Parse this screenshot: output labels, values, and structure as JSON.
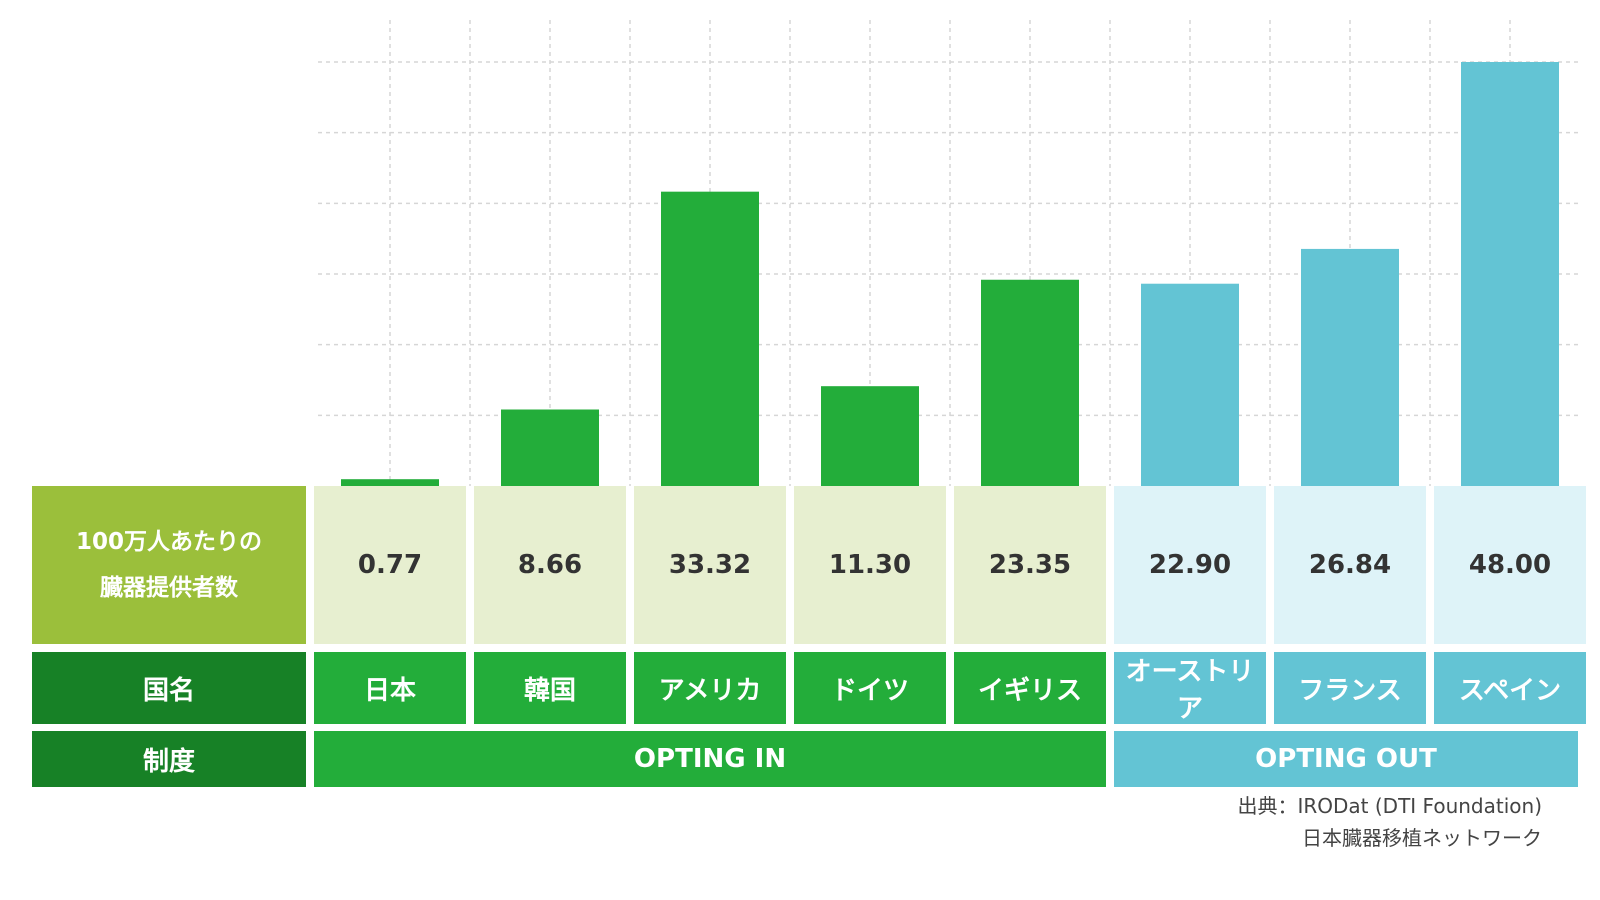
{
  "table": {
    "metric_label_line1": "100万人あたりの",
    "metric_label_line2": "臓器提供者数",
    "country_header": "国名",
    "system_header": "制度",
    "system_groups": [
      "OPTING IN",
      "OPTING OUT"
    ]
  },
  "source": {
    "line1": "出典：IRODat (DTI Foundation)",
    "line2": "日本臓器移植ネットワーク"
  },
  "chart_data": {
    "type": "bar",
    "categories": [
      "日本",
      "韓国",
      "アメリカ",
      "ドイツ",
      "イギリス",
      "オーストリア",
      "フランス",
      "スペイン"
    ],
    "values": [
      0.77,
      8.66,
      33.32,
      11.3,
      23.35,
      22.9,
      26.84,
      48.0
    ],
    "value_labels": [
      "0.77",
      "8.66",
      "33.32",
      "11.30",
      "23.35",
      "22.90",
      "26.84",
      "48.00"
    ],
    "groups": [
      "OPTING IN",
      "OPTING IN",
      "OPTING IN",
      "OPTING IN",
      "OPTING IN",
      "OPTING OUT",
      "OPTING OUT",
      "OPTING OUT"
    ],
    "ylim": [
      0,
      55
    ],
    "grid": true,
    "colors": {
      "OPTING IN": "#23ad3a",
      "OPTING OUT": "#63c4d4"
    }
  }
}
